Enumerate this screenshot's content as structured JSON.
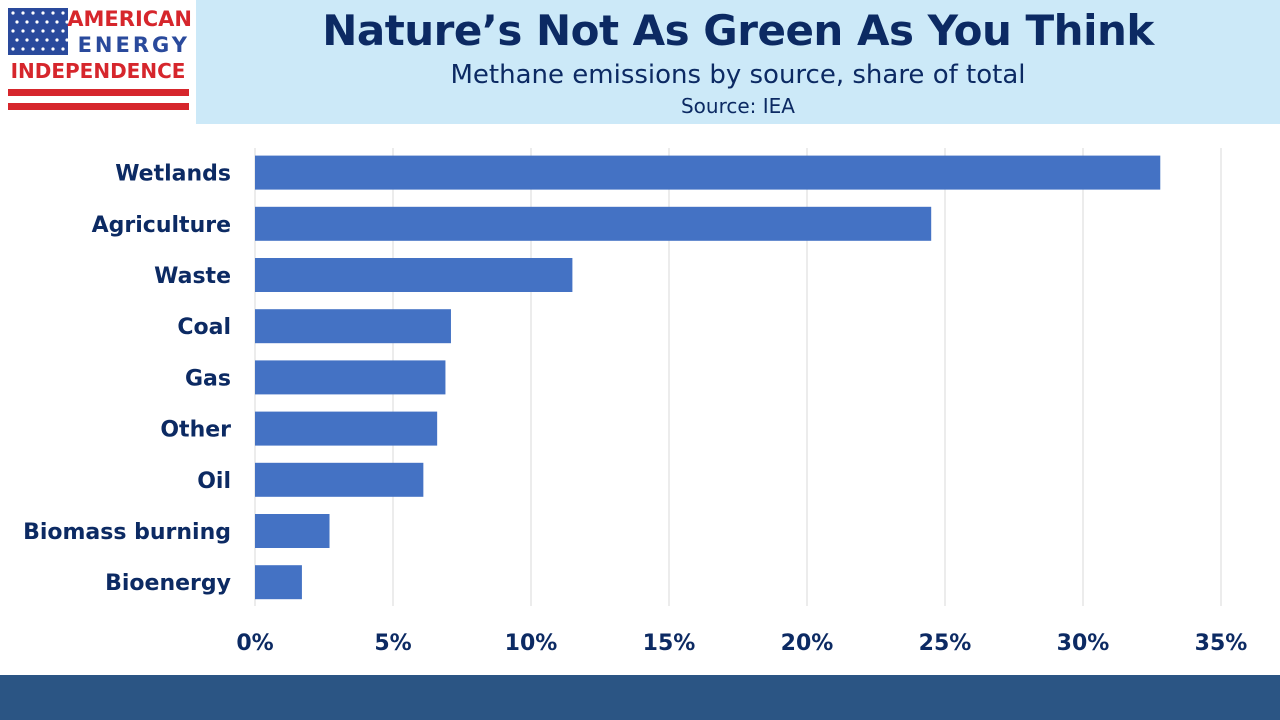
{
  "logo": {
    "line1": "AMERICAN",
    "line2": "ENERGY",
    "line3": "INDEPENDENCE",
    "flag_blue": "#2a4a9c",
    "flag_red": "#d6262c"
  },
  "header": {
    "title": "Nature’s Not As Green As You Think",
    "subtitle": "Methane emissions by source, share of total",
    "source": "Source: IEA"
  },
  "colors": {
    "bar": "#4472c4",
    "text": "#0c2a63",
    "grid": "#d9d9d9",
    "header_bg": "#cce9f8",
    "footer": "#2b5584"
  },
  "chart_data": {
    "type": "bar",
    "orientation": "horizontal",
    "categories": [
      "Wetlands",
      "Agriculture",
      "Waste",
      "Coal",
      "Gas",
      "Other",
      "Oil",
      "Biomass burning",
      "Bioenergy"
    ],
    "values": [
      32.8,
      24.5,
      11.5,
      7.1,
      6.9,
      6.6,
      6.1,
      2.7,
      1.7
    ],
    "xlim": [
      0,
      35
    ],
    "x_ticks": [
      "0%",
      "5%",
      "10%",
      "15%",
      "20%",
      "25%",
      "30%",
      "35%"
    ],
    "grid": true
  }
}
